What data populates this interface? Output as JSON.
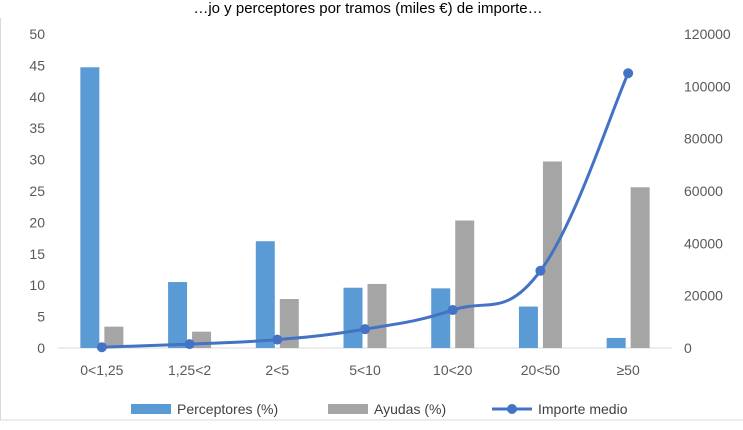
{
  "chart_data": {
    "type": "bar",
    "title": "…jo y perceptores por tramos (miles €) de importe…",
    "categories": [
      "0<1,25",
      "1,25<2",
      "2<5",
      "5<10",
      "10<20",
      "20<50",
      "≥50"
    ],
    "series": [
      {
        "name": "Perceptores (%)",
        "type": "bar",
        "axis": "left",
        "color": "#5b9bd5",
        "values": [
          44.7,
          10.5,
          17.0,
          9.6,
          9.5,
          6.6,
          1.6
        ]
      },
      {
        "name": "Ayudas (%)",
        "type": "bar",
        "axis": "left",
        "color": "#a5a5a5",
        "values": [
          3.4,
          2.6,
          7.8,
          10.2,
          20.3,
          29.7,
          25.6
        ]
      },
      {
        "name": "Importe medio",
        "type": "line",
        "axis": "right",
        "color": "#4472c4",
        "values": [
          300,
          1500,
          3200,
          7200,
          14500,
          29500,
          105000
        ]
      }
    ],
    "y_left": {
      "min": 0,
      "max": 50,
      "step": 5,
      "ticks": [
        "0",
        "5",
        "10",
        "15",
        "20",
        "25",
        "30",
        "35",
        "40",
        "45",
        "50"
      ]
    },
    "y_right": {
      "min": 0,
      "max": 120000,
      "step": 20000,
      "ticks": [
        "0",
        "20000",
        "40000",
        "60000",
        "80000",
        "100000",
        "120000"
      ]
    },
    "grid": false,
    "legend": "bottom"
  }
}
